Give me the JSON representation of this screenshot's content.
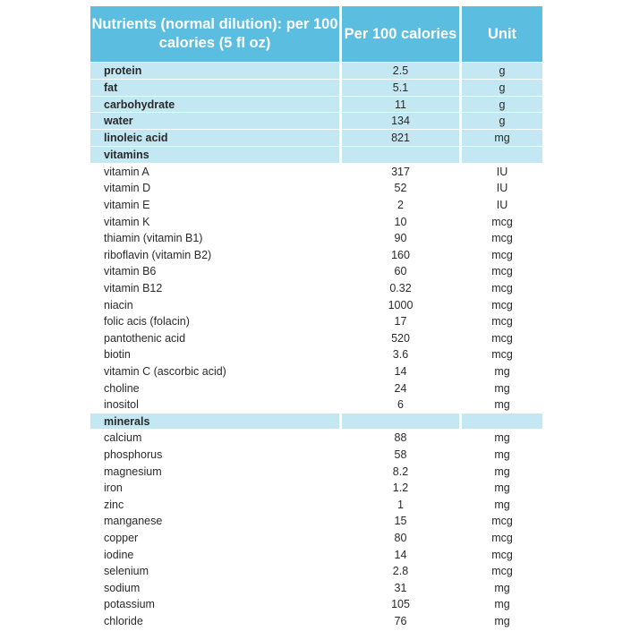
{
  "header": {
    "col1": "Nutrients (normal dilution): per 100 calories (5 fl oz)",
    "col2": "Per 100 calories",
    "col3": "Unit"
  },
  "macros": [
    {
      "name": "protein",
      "value": "2.5",
      "unit": "g"
    },
    {
      "name": "fat",
      "value": "5.1",
      "unit": "g"
    },
    {
      "name": "carbohydrate",
      "value": "11",
      "unit": "g"
    },
    {
      "name": "water",
      "value": "134",
      "unit": "g"
    },
    {
      "name": "linoleic acid",
      "value": "821",
      "unit": "mg"
    }
  ],
  "vitamins_label": "vitamins",
  "vitamins": [
    {
      "name": "vitamin A",
      "value": "317",
      "unit": "IU"
    },
    {
      "name": "vitamin D",
      "value": "52",
      "unit": "IU"
    },
    {
      "name": "vitamin E",
      "value": "2",
      "unit": "IU"
    },
    {
      "name": "vitamin K",
      "value": "10",
      "unit": "mcg"
    },
    {
      "name": "thiamin (vitamin B1)",
      "value": "90",
      "unit": "mcg"
    },
    {
      "name": "riboflavin (vitamin B2)",
      "value": "160",
      "unit": "mcg"
    },
    {
      "name": "vitamin B6",
      "value": "60",
      "unit": "mcg"
    },
    {
      "name": "vitamin B12",
      "value": "0.32",
      "unit": "mcg"
    },
    {
      "name": "niacin",
      "value": "1000",
      "unit": "mcg"
    },
    {
      "name": "folic acis (folacin)",
      "value": "17",
      "unit": "mcg"
    },
    {
      "name": "pantothenic acid",
      "value": "520",
      "unit": "mcg"
    },
    {
      "name": "biotin",
      "value": "3.6",
      "unit": "mcg"
    },
    {
      "name": "vitamin C (ascorbic acid)",
      "value": "14",
      "unit": "mg"
    },
    {
      "name": "choline",
      "value": "24",
      "unit": "mg"
    },
    {
      "name": "inositol",
      "value": "6",
      "unit": "mg"
    }
  ],
  "minerals_label": "minerals",
  "minerals": [
    {
      "name": "calcium",
      "value": "88",
      "unit": "mg"
    },
    {
      "name": "phosphorus",
      "value": "58",
      "unit": "mg"
    },
    {
      "name": "magnesium",
      "value": "8.2",
      "unit": "mg"
    },
    {
      "name": "iron",
      "value": "1.2",
      "unit": "mg"
    },
    {
      "name": "zinc",
      "value": "1",
      "unit": "mg"
    },
    {
      "name": "manganese",
      "value": "15",
      "unit": "mcg"
    },
    {
      "name": "copper",
      "value": "80",
      "unit": "mcg"
    },
    {
      "name": "iodine",
      "value": "14",
      "unit": "mcg"
    },
    {
      "name": "selenium",
      "value": "2.8",
      "unit": "mcg"
    },
    {
      "name": "sodium",
      "value": "31",
      "unit": "mg"
    },
    {
      "name": "potassium",
      "value": "105",
      "unit": "mg"
    },
    {
      "name": "chloride",
      "value": "76",
      "unit": "mg"
    }
  ]
}
